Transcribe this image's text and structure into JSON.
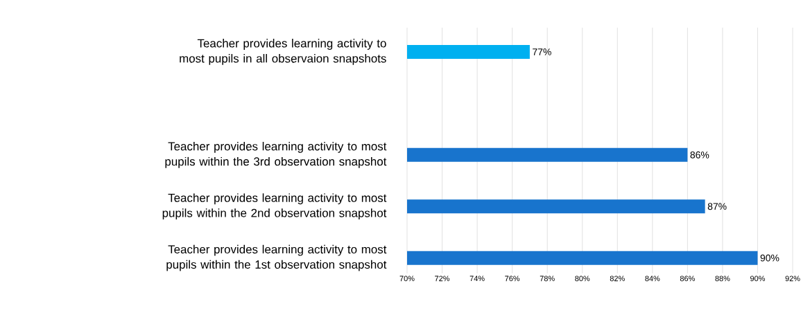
{
  "chart_data": {
    "type": "bar",
    "orientation": "horizontal",
    "categories": [
      "Teacher provides learning activity to most pupils in all observaion snapshots",
      null,
      "Teacher provides learning activity to most pupils within the 3rd observation snapshot",
      "Teacher provides learning activity to most pupils within the 2nd observation snapshot",
      "Teacher provides learning activity to most pupils within the 1st observation snapshot"
    ],
    "values": [
      77,
      null,
      86,
      87,
      90
    ],
    "value_labels": [
      "77%",
      null,
      "86%",
      "87%",
      "90%"
    ],
    "colors": [
      "#00b0f0",
      "#1874cd",
      "#1874cd",
      "#1874cd",
      "#1874cd"
    ],
    "xlim": [
      70,
      92
    ],
    "xticks": [
      {
        "value": 70,
        "label": "70%"
      },
      {
        "value": 72,
        "label": "72%"
      },
      {
        "value": 74,
        "label": "74%"
      },
      {
        "value": 76,
        "label": "76%"
      },
      {
        "value": 78,
        "label": "78%"
      },
      {
        "value": 80,
        "label": "80%"
      },
      {
        "value": 82,
        "label": "82%"
      },
      {
        "value": 84,
        "label": "84%"
      },
      {
        "value": 86,
        "label": "86%"
      },
      {
        "value": 88,
        "label": "88%"
      },
      {
        "value": 90,
        "label": "90%"
      },
      {
        "value": 92,
        "label": "92%"
      }
    ],
    "grid": "x"
  }
}
